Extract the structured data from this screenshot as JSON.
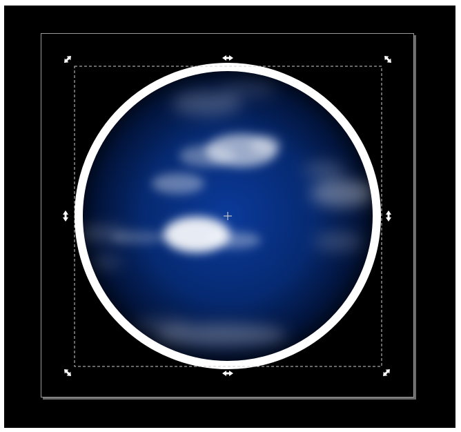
{
  "app": {
    "canvas_background": "#000000",
    "page_border_color": "#9a9a9a",
    "page_shadow_color": "#6a6a6a"
  },
  "drawing": {
    "object": "globe-with-clouds",
    "ring_color": "#ffffff",
    "sphere_center_color": "#0b3a9a",
    "sphere_edge_color": "#000510",
    "cloud_color": "#ffffff"
  },
  "selection": {
    "bbox_line_style": "dashed",
    "bbox_line_color": "#cfcfcf",
    "handle_color": "#ffffff",
    "handles": [
      "scale-nw",
      "scale-n",
      "scale-ne",
      "scale-e",
      "scale-se",
      "scale-s",
      "scale-sw",
      "scale-w"
    ],
    "center_marker": "crosshair"
  }
}
